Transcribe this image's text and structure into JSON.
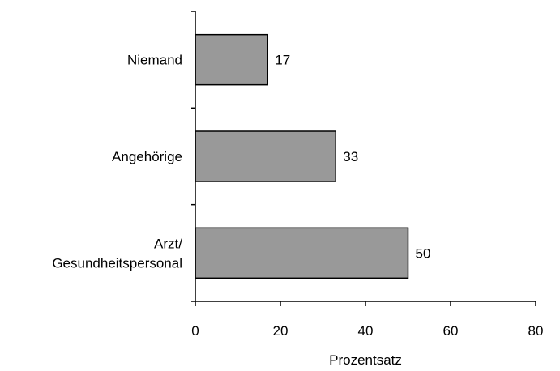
{
  "chart_data": {
    "type": "bar",
    "orientation": "horizontal",
    "categories": [
      [
        "Niemand"
      ],
      [
        "Angehörige"
      ],
      [
        "Arzt/",
        "Gesundheitspersonal"
      ]
    ],
    "values": [
      17,
      33,
      50
    ],
    "data_labels": [
      "17",
      "33",
      "50"
    ],
    "xlabel": "Prozentsatz",
    "ylabel": "",
    "title": "",
    "xlim": [
      0,
      80
    ],
    "xticks": [
      0,
      20,
      40,
      60,
      80
    ],
    "grid": false,
    "legend": "none",
    "bar_color": "#999999",
    "bar_edge_color": "#000000"
  }
}
